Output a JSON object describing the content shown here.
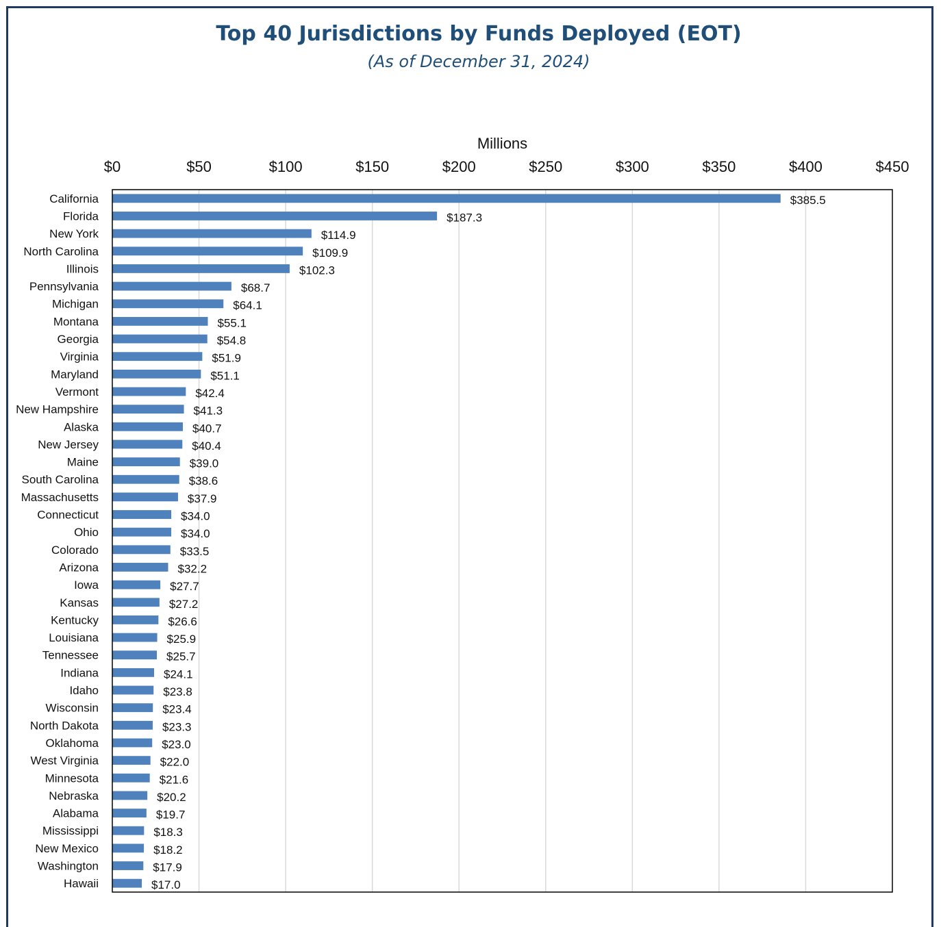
{
  "header": {
    "title": "Top 40 Jurisdictions by Funds Deployed (EOT)",
    "subtitle": "(As of December 31, 2024)"
  },
  "colors": {
    "bar": "#4f81bd",
    "gridline": "#d9d9d9",
    "frame": "#1f3864",
    "title": "#1f4e79"
  },
  "chart_data": {
    "type": "bar",
    "orientation": "horizontal",
    "title": "Top 40 Jurisdictions by Funds Deployed (EOT)",
    "subtitle": "(As of December 31, 2024)",
    "xlabel": "Millions",
    "ylabel": "",
    "xlim": [
      0,
      450
    ],
    "x_ticks": [
      0,
      50,
      100,
      150,
      200,
      250,
      300,
      350,
      400,
      450
    ],
    "x_tick_labels": [
      "$0",
      "$50",
      "$100",
      "$150",
      "$200",
      "$250",
      "$300",
      "$350",
      "$400",
      "$450"
    ],
    "x_axis_position": "top",
    "grid": true,
    "categories": [
      "California",
      "Florida",
      "New York",
      "North Carolina",
      "Illinois",
      "Pennsylvania",
      "Michigan",
      "Montana",
      "Georgia",
      "Virginia",
      "Maryland",
      "Vermont",
      "New Hampshire",
      "Alaska",
      "New Jersey",
      "Maine",
      "South Carolina",
      "Massachusetts",
      "Connecticut",
      "Ohio",
      "Colorado",
      "Arizona",
      "Iowa",
      "Kansas",
      "Kentucky",
      "Louisiana",
      "Tennessee",
      "Indiana",
      "Idaho",
      "Wisconsin",
      "North Dakota",
      "Oklahoma",
      "West Virginia",
      "Minnesota",
      "Nebraska",
      "Alabama",
      "Mississippi",
      "New Mexico",
      "Washington",
      "Hawaii"
    ],
    "values": [
      385.5,
      187.3,
      114.9,
      109.9,
      102.3,
      68.7,
      64.1,
      55.1,
      54.8,
      51.9,
      51.1,
      42.4,
      41.3,
      40.7,
      40.4,
      39.0,
      38.6,
      37.9,
      34.0,
      34.0,
      33.5,
      32.2,
      27.7,
      27.2,
      26.6,
      25.9,
      25.7,
      24.1,
      23.8,
      23.4,
      23.3,
      23.0,
      22.0,
      21.6,
      20.2,
      19.7,
      18.3,
      18.2,
      17.9,
      17.0
    ],
    "value_labels": [
      "$385.5",
      "$187.3",
      "$114.9",
      "$109.9",
      "$102.3",
      "$68.7",
      "$64.1",
      "$55.1",
      "$54.8",
      "$51.9",
      "$51.1",
      "$42.4",
      "$41.3",
      "$40.7",
      "$40.4",
      "$39.0",
      "$38.6",
      "$37.9",
      "$34.0",
      "$34.0",
      "$33.5",
      "$32.2",
      "$27.7",
      "$27.2",
      "$26.6",
      "$25.9",
      "$25.7",
      "$24.1",
      "$23.8",
      "$23.4",
      "$23.3",
      "$23.0",
      "$22.0",
      "$21.6",
      "$20.2",
      "$19.7",
      "$18.3",
      "$18.2",
      "$17.9",
      "$17.0"
    ]
  }
}
